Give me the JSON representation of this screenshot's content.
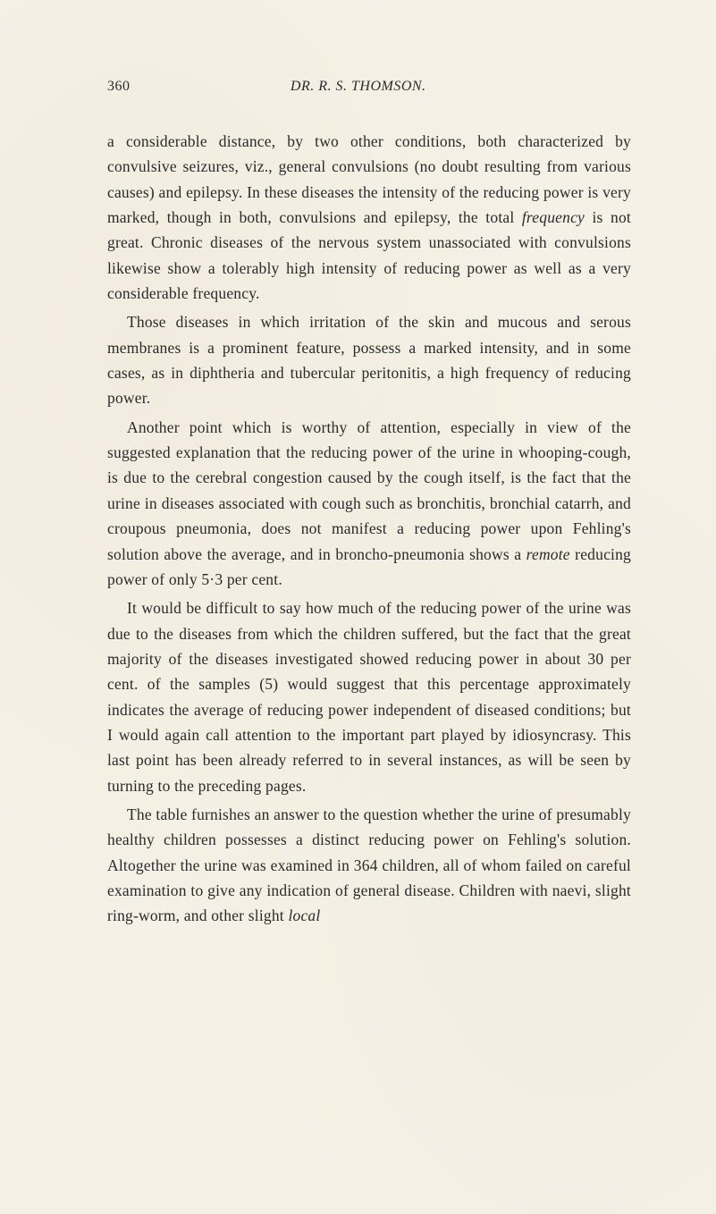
{
  "page_number": "360",
  "author_header": "DR. R. S. THOMSON.",
  "paragraphs": {
    "p1_part1": "a considerable distance, by two other conditions, both charac­terized by convulsive seizures, viz., general convulsions (no doubt resulting from various causes) and epilepsy. In these diseases the intensity of the reducing power is very marked, though in both, convulsions and epilepsy, the total ",
    "p1_italic": "frequency",
    "p1_part2": " is not great. Chronic diseases of the nervous system unassociated with convulsions likewise show a tolerably high intensity of reducing power as well as a very considerable frequency.",
    "p2": "Those diseases in which irritation of the skin and mucous and serous membranes is a prominent feature, possess a marked intensity, and in some cases, as in diphtheria and tubercular peritonitis, a high frequency of reducing power.",
    "p3_part1": "Another point which is worthy of attention, especially in view of the suggested explanation that the reducing power of the urine in whooping-cough, is due to the cerebral con­gestion caused by the cough itself, is the fact that the urine in diseases associated with cough such as bronchitis, bronchial catarrh, and croupous pneumonia, does not manifest a reducing power upon Fehling's solution above the average, and in broncho-pneumonia shows a ",
    "p3_italic": "remote",
    "p3_part2": " reducing power of only 5·3 per cent.",
    "p4": "It would be difficult to say how much of the reducing power of the urine was due to the diseases from which the children suffered, but the fact that the great majority of the diseases investigated showed reducing power in about 30 per cent. of the samples (5) would suggest that this percentage approximately indicates the average of reducing power independent of diseased conditions; but I would again call attention to the important part played by idiosyncrasy. This last point has been already referred to in several instances, as will be seen by turning to the preceding pages.",
    "p5_part1": "The table furnishes an answer to the question whether the urine of presumably healthy children possesses a distinct reducing power on Fehling's solution. Altogether the urine was examined in 364 children, all of whom failed on careful examination to give any indication of general disease. Children with naevi, slight ring-worm, and other slight ",
    "p5_italic": "local"
  },
  "typography": {
    "body_fontsize": 17.5,
    "header_fontsize": 16,
    "line_height": 1.62,
    "text_color": "#2a2a2a",
    "background_color": "#f5f1e6"
  }
}
